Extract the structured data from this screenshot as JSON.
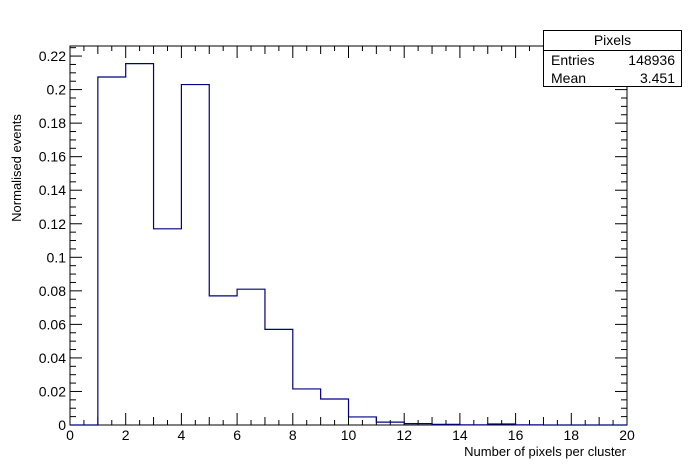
{
  "chart_data": {
    "type": "bar",
    "style": "step-histogram",
    "xlabel": "Number of pixels per cluster",
    "ylabel": "Normalised events",
    "xlim": [
      0,
      20
    ],
    "ylim": [
      0,
      0.226
    ],
    "x_ticks": [
      0,
      2,
      4,
      6,
      8,
      10,
      12,
      14,
      16,
      18,
      20
    ],
    "y_ticks": [
      0,
      0.02,
      0.04,
      0.06,
      0.08,
      0.1,
      0.12,
      0.14,
      0.16,
      0.18,
      0.2,
      0.22
    ],
    "y_tick_labels": [
      "0",
      "0.02",
      "0.04",
      "0.06",
      "0.08",
      "0.1",
      "0.12",
      "0.14",
      "0.16",
      "0.18",
      "0.2",
      "0.22"
    ],
    "bins": [
      {
        "x_low": 0,
        "x_high": 1,
        "value": 0
      },
      {
        "x_low": 1,
        "x_high": 2,
        "value": 0.2075
      },
      {
        "x_low": 2,
        "x_high": 3,
        "value": 0.2155
      },
      {
        "x_low": 3,
        "x_high": 4,
        "value": 0.117
      },
      {
        "x_low": 4,
        "x_high": 5,
        "value": 0.203
      },
      {
        "x_low": 5,
        "x_high": 6,
        "value": 0.077
      },
      {
        "x_low": 6,
        "x_high": 7,
        "value": 0.081
      },
      {
        "x_low": 7,
        "x_high": 8,
        "value": 0.057
      },
      {
        "x_low": 8,
        "x_high": 9,
        "value": 0.0215
      },
      {
        "x_low": 9,
        "x_high": 10,
        "value": 0.0155
      },
      {
        "x_low": 10,
        "x_high": 11,
        "value": 0.0048
      },
      {
        "x_low": 11,
        "x_high": 12,
        "value": 0.0017
      },
      {
        "x_low": 12,
        "x_high": 13,
        "value": 0.0008
      },
      {
        "x_low": 13,
        "x_high": 14,
        "value": 0.0004
      },
      {
        "x_low": 14,
        "x_high": 15,
        "value": 0.0001
      },
      {
        "x_low": 15,
        "x_high": 16,
        "value": 0.0006
      },
      {
        "x_low": 16,
        "x_high": 17,
        "value": 0.0001
      },
      {
        "x_low": 17,
        "x_high": 18,
        "value": 0
      },
      {
        "x_low": 18,
        "x_high": 19,
        "value": 0
      },
      {
        "x_low": 19,
        "x_high": 20,
        "value": 0
      }
    ],
    "line_color": "#000080",
    "grid": false
  },
  "stats": {
    "title": "Pixels",
    "entries_label": "Entries",
    "entries_value": "148936",
    "mean_label": "Mean",
    "mean_value": "3.451"
  }
}
